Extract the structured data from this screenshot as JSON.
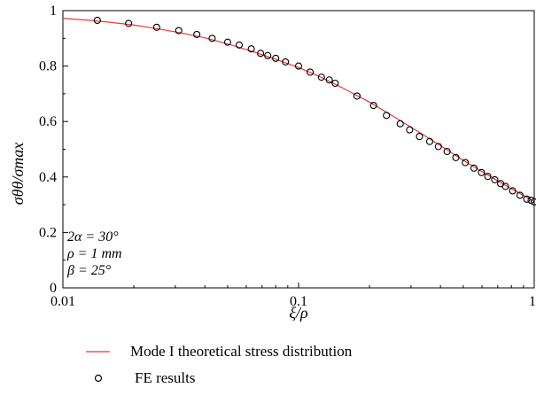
{
  "chart_data": {
    "type": "line",
    "xscale": "log",
    "xlim": [
      0.01,
      1
    ],
    "ylim": [
      0,
      1
    ],
    "grid": false,
    "legend_position": "bottom",
    "xlabel": "ξ/ρ",
    "ylabel": "σθθ/σmax",
    "x_ticks": [
      {
        "value": 0.01,
        "label": "0.01"
      },
      {
        "value": 0.1,
        "label": "0.1"
      },
      {
        "value": 1,
        "label": "1"
      }
    ],
    "y_ticks": [
      {
        "value": 0,
        "label": "0"
      },
      {
        "value": 0.2,
        "label": "0.2"
      },
      {
        "value": 0.4,
        "label": "0.4"
      },
      {
        "value": 0.6,
        "label": "0.6"
      },
      {
        "value": 0.8,
        "label": "0.8"
      },
      {
        "value": 1,
        "label": "1"
      }
    ],
    "annotations": [
      "2α = 30°",
      "ρ = 1 mm",
      "β = 25°"
    ],
    "series": [
      {
        "name": "Mode I theoretical stress distribution",
        "style": "line",
        "color": "#e8363c",
        "x": [
          0.01,
          0.0126,
          0.0158,
          0.02,
          0.025,
          0.0316,
          0.04,
          0.05,
          0.063,
          0.079,
          0.1,
          0.126,
          0.158,
          0.2,
          0.25,
          0.316,
          0.4,
          0.5,
          0.63,
          0.79,
          1.0
        ],
        "y": [
          0.972,
          0.966,
          0.958,
          0.948,
          0.935,
          0.92,
          0.902,
          0.88,
          0.854,
          0.826,
          0.795,
          0.758,
          0.716,
          0.67,
          0.621,
          0.568,
          0.513,
          0.46,
          0.409,
          0.36,
          0.312
        ]
      },
      {
        "name": "FE results",
        "style": "marker",
        "marker": "open-circle",
        "color": "#000000",
        "x": [
          0.014,
          0.019,
          0.025,
          0.031,
          0.037,
          0.043,
          0.05,
          0.056,
          0.063,
          0.069,
          0.074,
          0.08,
          0.088,
          0.1,
          0.112,
          0.125,
          0.135,
          0.143,
          0.177,
          0.208,
          0.236,
          0.27,
          0.296,
          0.326,
          0.36,
          0.392,
          0.427,
          0.465,
          0.51,
          0.555,
          0.597,
          0.635,
          0.68,
          0.72,
          0.755,
          0.81,
          0.87,
          0.93,
          0.97,
          1.0
        ],
        "y": [
          0.965,
          0.954,
          0.94,
          0.928,
          0.914,
          0.9,
          0.886,
          0.876,
          0.862,
          0.846,
          0.838,
          0.828,
          0.815,
          0.8,
          0.778,
          0.76,
          0.75,
          0.738,
          0.692,
          0.658,
          0.622,
          0.592,
          0.57,
          0.546,
          0.528,
          0.51,
          0.492,
          0.47,
          0.452,
          0.432,
          0.416,
          0.402,
          0.39,
          0.376,
          0.366,
          0.35,
          0.334,
          0.32,
          0.316,
          0.31
        ]
      }
    ]
  }
}
